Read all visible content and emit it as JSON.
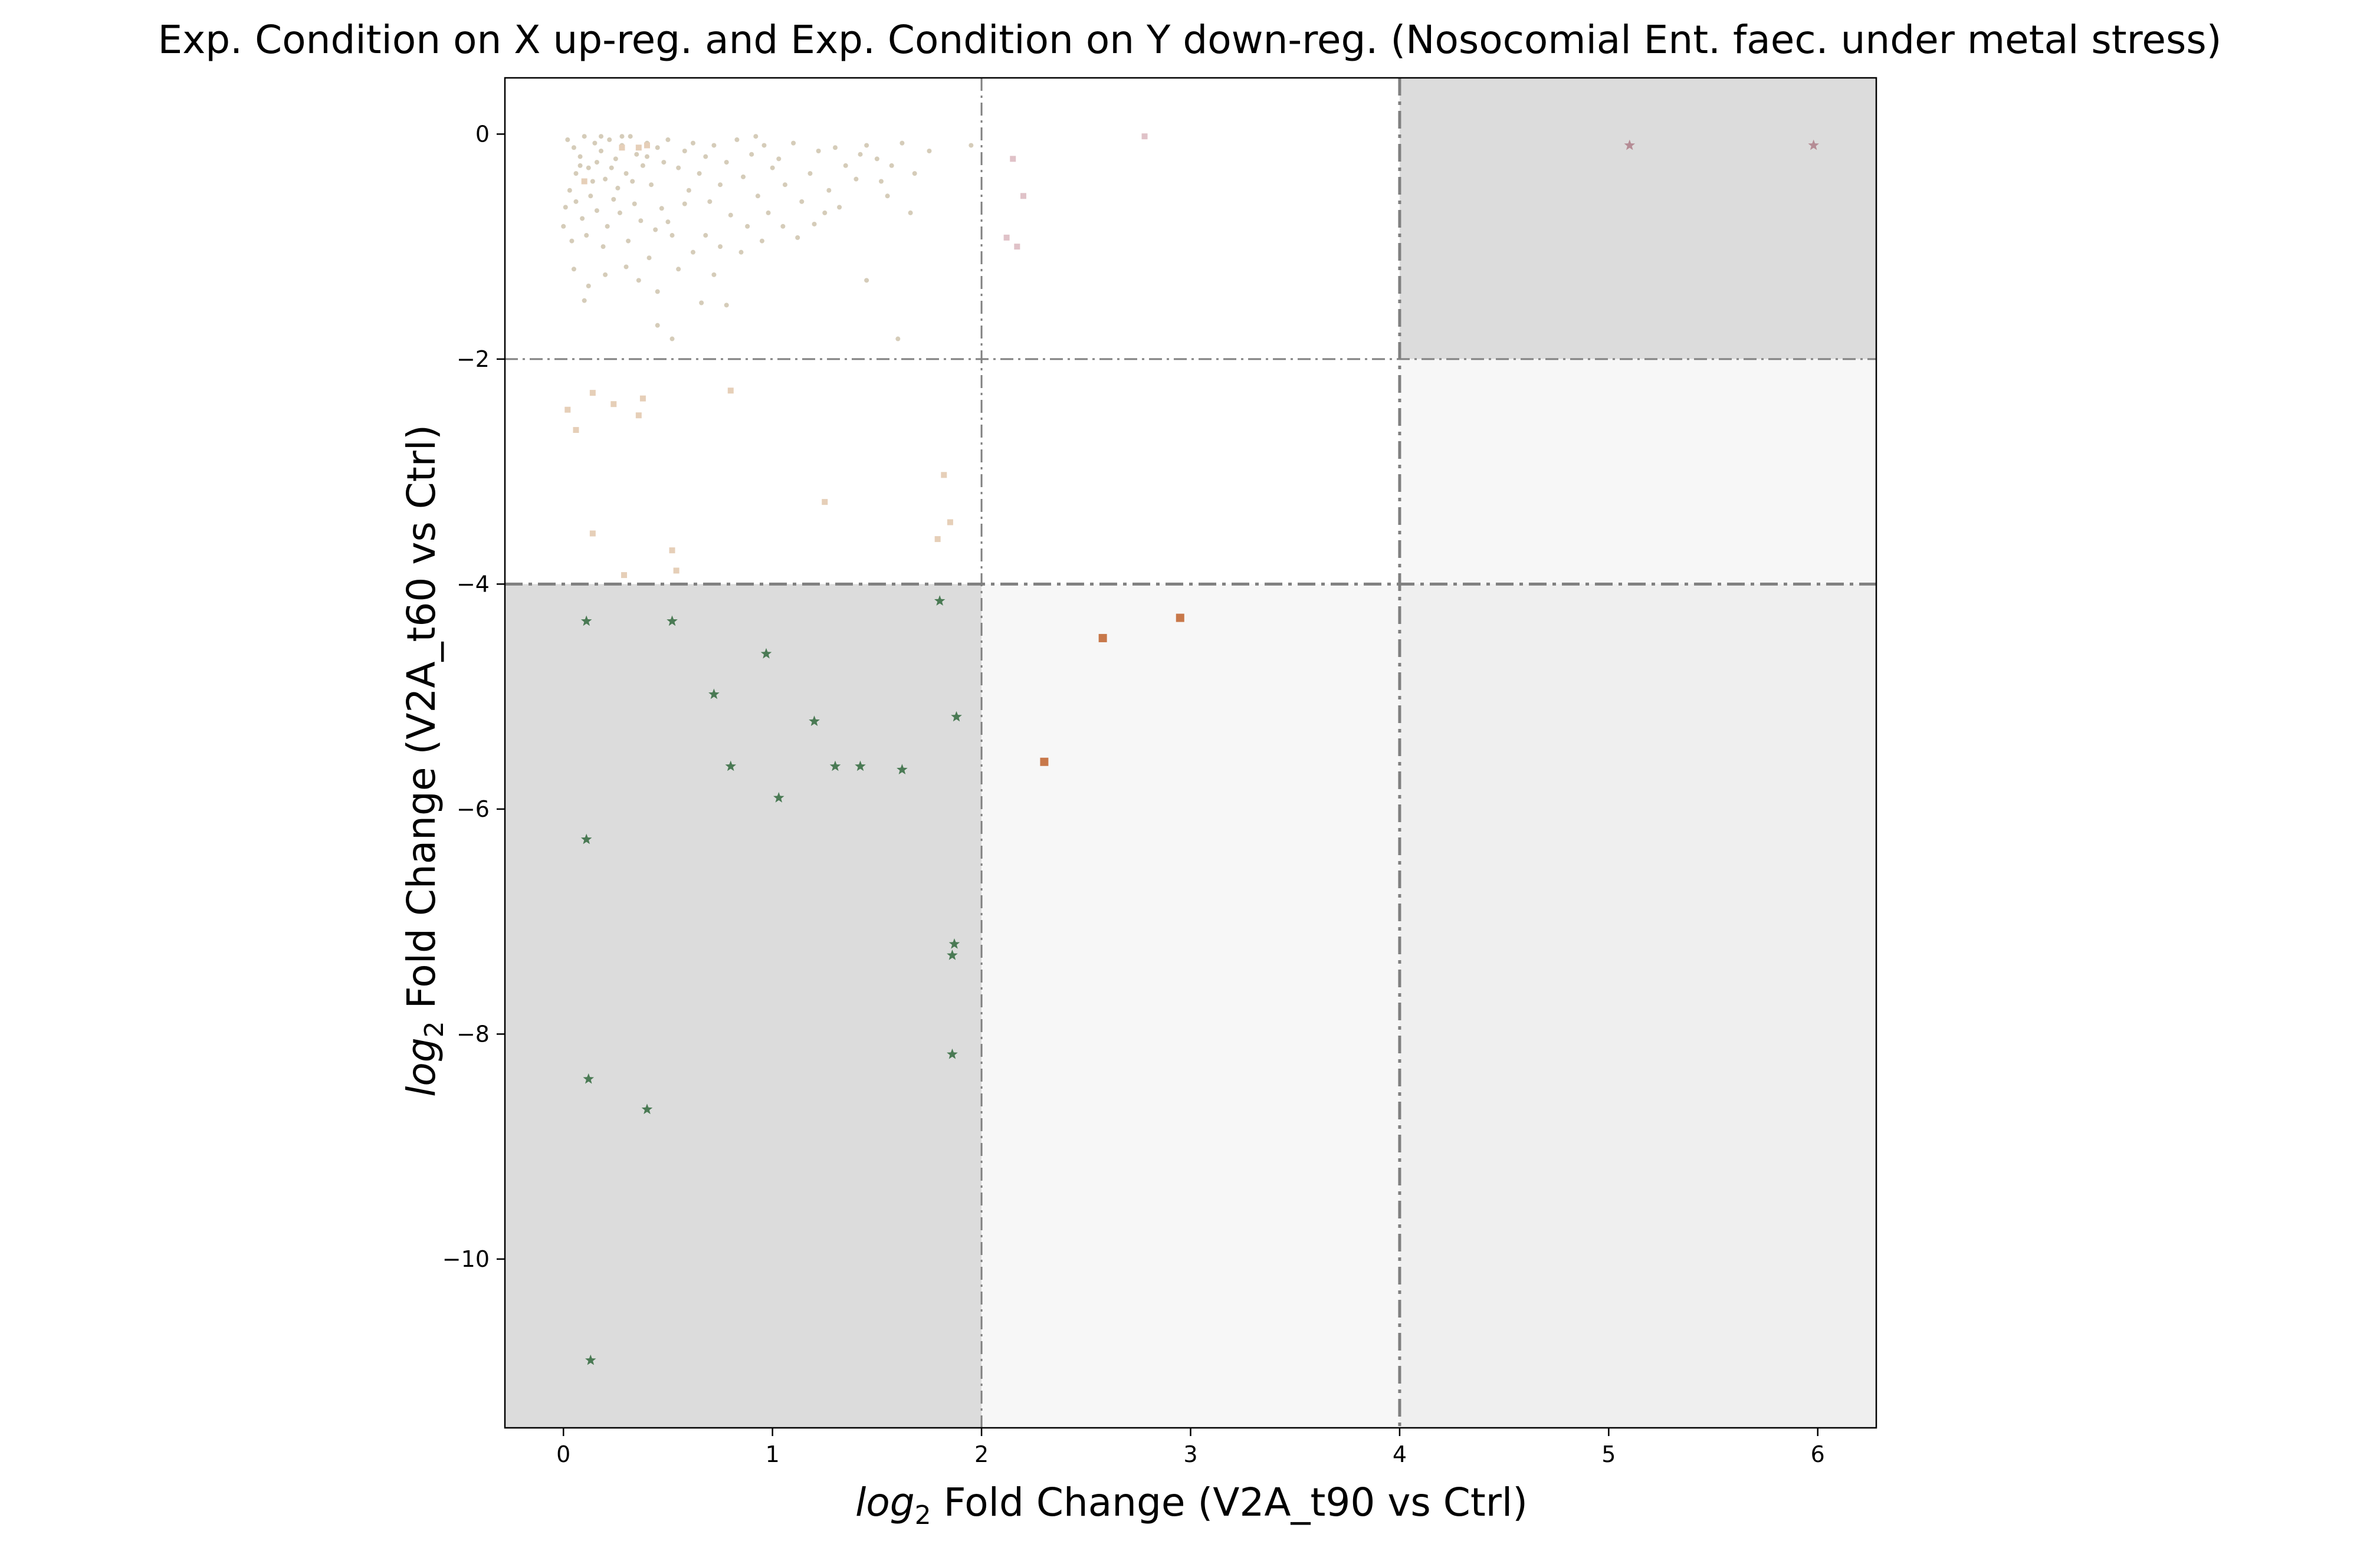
{
  "chart_data": {
    "type": "scatter",
    "title": "Exp. Condition on X up-reg. and Exp. Condition on Y down-reg. (Nosocomial Ent. faec. under metal stress)",
    "xlabel_math": "log",
    "xlabel_sub": "2",
    "xlabel_text": " Fold Change (V2A_t90 vs Ctrl)",
    "ylabel_math": "log",
    "ylabel_sub": "2",
    "ylabel_text": " Fold Change (V2A_t60 vs Ctrl)",
    "xlim": [
      -0.28,
      6.28
    ],
    "ylim": [
      -11.5,
      0.5
    ],
    "xticks": [
      0,
      1,
      2,
      3,
      4,
      5,
      6
    ],
    "xtick_labels": [
      "0",
      "1",
      "2",
      "3",
      "4",
      "5",
      "6"
    ],
    "yticks": [
      0,
      -2,
      -4,
      -6,
      -8,
      -10
    ],
    "ytick_labels": [
      "0",
      "−2",
      "−4",
      "−6",
      "−8",
      "−10"
    ],
    "grid": false,
    "thresholds": {
      "x_lines": [
        {
          "x": 2,
          "weight": "thin"
        },
        {
          "x": 4,
          "weight": "thick"
        }
      ],
      "y_lines": [
        {
          "y": -2,
          "weight": "thin"
        },
        {
          "y": -4,
          "weight": "thick"
        }
      ]
    },
    "regions": [
      {
        "x": [
          -0.28,
          2
        ],
        "y": [
          -11.5,
          -4
        ],
        "color": "#dcdcdc"
      },
      {
        "x": [
          4,
          6.28
        ],
        "y": [
          -2,
          0.5
        ],
        "color": "#dcdcdc"
      },
      {
        "x": [
          2,
          4
        ],
        "y": [
          -11.5,
          -4
        ],
        "color": "#f7f7f7"
      },
      {
        "x": [
          4,
          6.28
        ],
        "y": [
          -4,
          -2
        ],
        "color": "#f7f7f7"
      },
      {
        "x": [
          4,
          6.28
        ],
        "y": [
          -11.5,
          -4
        ],
        "color": "#efefef"
      }
    ],
    "series": [
      {
        "marker": "dot",
        "color": "#cbbfa8",
        "size": 4,
        "points": [
          [
            0.02,
            -0.05
          ],
          [
            0.05,
            -0.12
          ],
          [
            0.08,
            -0.2
          ],
          [
            0.1,
            -0.02
          ],
          [
            0.12,
            -0.3
          ],
          [
            0.15,
            -0.08
          ],
          [
            0.18,
            -0.15
          ],
          [
            0.2,
            -0.4
          ],
          [
            0.22,
            -0.05
          ],
          [
            0.25,
            -0.22
          ],
          [
            0.28,
            -0.1
          ],
          [
            0.3,
            -0.35
          ],
          [
            0.32,
            -0.02
          ],
          [
            0.35,
            -0.18
          ],
          [
            0.38,
            -0.28
          ],
          [
            0.4,
            -0.08
          ],
          [
            0.42,
            -0.45
          ],
          [
            0.45,
            -0.12
          ],
          [
            0.48,
            -0.25
          ],
          [
            0.5,
            -0.05
          ],
          [
            0.03,
            -0.5
          ],
          [
            0.06,
            -0.6
          ],
          [
            0.09,
            -0.75
          ],
          [
            0.11,
            -0.9
          ],
          [
            0.13,
            -0.55
          ],
          [
            0.16,
            -0.68
          ],
          [
            0.19,
            -1.0
          ],
          [
            0.21,
            -0.82
          ],
          [
            0.24,
            -0.58
          ],
          [
            0.27,
            -0.7
          ],
          [
            0.31,
            -0.95
          ],
          [
            0.34,
            -0.62
          ],
          [
            0.37,
            -0.77
          ],
          [
            0.41,
            -1.1
          ],
          [
            0.44,
            -0.85
          ],
          [
            0.47,
            -0.66
          ],
          [
            0.52,
            -0.9
          ],
          [
            0.55,
            -0.3
          ],
          [
            0.58,
            -0.15
          ],
          [
            0.6,
            -0.5
          ],
          [
            0.62,
            -0.08
          ],
          [
            0.65,
            -0.35
          ],
          [
            0.68,
            -0.2
          ],
          [
            0.7,
            -0.6
          ],
          [
            0.72,
            -0.1
          ],
          [
            0.75,
            -0.45
          ],
          [
            0.78,
            -0.25
          ],
          [
            0.8,
            -0.72
          ],
          [
            0.83,
            -0.05
          ],
          [
            0.86,
            -0.38
          ],
          [
            0.9,
            -0.18
          ],
          [
            0.93,
            -0.55
          ],
          [
            0.96,
            -0.1
          ],
          [
            1.0,
            -0.3
          ],
          [
            1.03,
            -0.22
          ],
          [
            1.06,
            -0.45
          ],
          [
            1.1,
            -0.08
          ],
          [
            1.14,
            -0.6
          ],
          [
            1.18,
            -0.35
          ],
          [
            1.22,
            -0.15
          ],
          [
            1.27,
            -0.5
          ],
          [
            1.3,
            -0.12
          ],
          [
            1.35,
            -0.28
          ],
          [
            1.4,
            -0.4
          ],
          [
            1.45,
            -0.1
          ],
          [
            1.5,
            -0.22
          ],
          [
            1.55,
            -0.55
          ],
          [
            1.62,
            -0.08
          ],
          [
            1.68,
            -0.35
          ],
          [
            1.75,
            -0.15
          ],
          [
            0.05,
            -1.2
          ],
          [
            0.12,
            -1.35
          ],
          [
            0.2,
            -1.25
          ],
          [
            0.3,
            -1.18
          ],
          [
            0.1,
            -1.48
          ],
          [
            0.36,
            -1.3
          ],
          [
            0.45,
            -1.4
          ],
          [
            0.55,
            -1.2
          ],
          [
            0.62,
            -1.05
          ],
          [
            0.72,
            -1.25
          ],
          [
            0.85,
            -1.05
          ],
          [
            0.95,
            -0.95
          ],
          [
            1.05,
            -0.82
          ],
          [
            1.2,
            -0.8
          ],
          [
            1.25,
            -0.7
          ],
          [
            1.45,
            -1.3
          ],
          [
            1.6,
            -1.82
          ],
          [
            1.66,
            -0.7
          ],
          [
            0.45,
            -1.7
          ],
          [
            0.52,
            -1.82
          ],
          [
            0.78,
            -1.52
          ],
          [
            0.66,
            -1.5
          ],
          [
            0.28,
            -0.02
          ],
          [
            0.18,
            -0.02
          ],
          [
            0.08,
            -0.28
          ],
          [
            0.14,
            -0.42
          ],
          [
            0.26,
            -0.48
          ],
          [
            0.33,
            -0.42
          ],
          [
            0.4,
            -0.2
          ],
          [
            0.23,
            -0.3
          ],
          [
            0.16,
            -0.25
          ],
          [
            0.06,
            -0.35
          ],
          [
            0.01,
            -0.65
          ],
          [
            0.0,
            -0.82
          ],
          [
            0.04,
            -0.95
          ],
          [
            0.58,
            -0.62
          ],
          [
            0.98,
            -0.7
          ],
          [
            1.12,
            -0.92
          ],
          [
            1.32,
            -0.65
          ],
          [
            1.52,
            -0.42
          ],
          [
            0.88,
            -0.82
          ],
          [
            0.75,
            -1.0
          ],
          [
            0.68,
            -0.9
          ],
          [
            1.42,
            -0.18
          ],
          [
            1.57,
            -0.28
          ],
          [
            1.95,
            -0.1
          ],
          [
            0.92,
            -0.02
          ],
          [
            0.5,
            -0.78
          ]
        ]
      },
      {
        "marker": "square",
        "color": "#e6cfb8",
        "size": 10,
        "points": [
          [
            0.02,
            -2.45
          ],
          [
            0.06,
            -2.63
          ],
          [
            0.14,
            -2.3
          ],
          [
            0.24,
            -2.4
          ],
          [
            0.36,
            -2.5
          ],
          [
            0.38,
            -2.35
          ],
          [
            0.8,
            -2.28
          ],
          [
            0.14,
            -3.55
          ],
          [
            0.29,
            -3.92
          ],
          [
            0.52,
            -3.7
          ],
          [
            0.54,
            -3.88
          ],
          [
            1.25,
            -3.27
          ],
          [
            1.82,
            -3.03
          ],
          [
            1.85,
            -3.45
          ],
          [
            1.79,
            -3.6
          ],
          [
            0.1,
            -0.42
          ],
          [
            0.28,
            -0.12
          ],
          [
            0.4,
            -0.1
          ],
          [
            0.36,
            -0.12
          ]
        ]
      },
      {
        "marker": "square",
        "color": "#e0c2c8",
        "size": 10,
        "points": [
          [
            2.15,
            -0.22
          ],
          [
            2.2,
            -0.55
          ],
          [
            2.12,
            -0.92
          ],
          [
            2.17,
            -1.0
          ],
          [
            2.78,
            -0.02
          ]
        ]
      },
      {
        "marker": "square",
        "color": "#c8784a",
        "size": 14,
        "points": [
          [
            2.3,
            -5.58
          ],
          [
            2.58,
            -4.48
          ],
          [
            2.95,
            -4.3
          ]
        ]
      },
      {
        "marker": "star",
        "color": "#4a7a54",
        "size": 14,
        "points": [
          [
            0.11,
            -4.33
          ],
          [
            0.52,
            -4.33
          ],
          [
            0.97,
            -4.62
          ],
          [
            1.8,
            -4.15
          ],
          [
            0.72,
            -4.98
          ],
          [
            1.2,
            -5.22
          ],
          [
            1.88,
            -5.18
          ],
          [
            0.8,
            -5.62
          ],
          [
            1.3,
            -5.62
          ],
          [
            1.42,
            -5.62
          ],
          [
            1.62,
            -5.65
          ],
          [
            1.03,
            -5.9
          ],
          [
            0.11,
            -6.27
          ],
          [
            1.87,
            -7.2
          ],
          [
            1.86,
            -7.3
          ],
          [
            1.86,
            -8.18
          ],
          [
            0.12,
            -8.4
          ],
          [
            0.4,
            -8.67
          ],
          [
            0.13,
            -10.9
          ]
        ]
      },
      {
        "marker": "star",
        "color": "#b58c95",
        "size": 14,
        "points": [
          [
            5.1,
            -0.1
          ],
          [
            5.98,
            -0.1
          ]
        ]
      }
    ]
  }
}
